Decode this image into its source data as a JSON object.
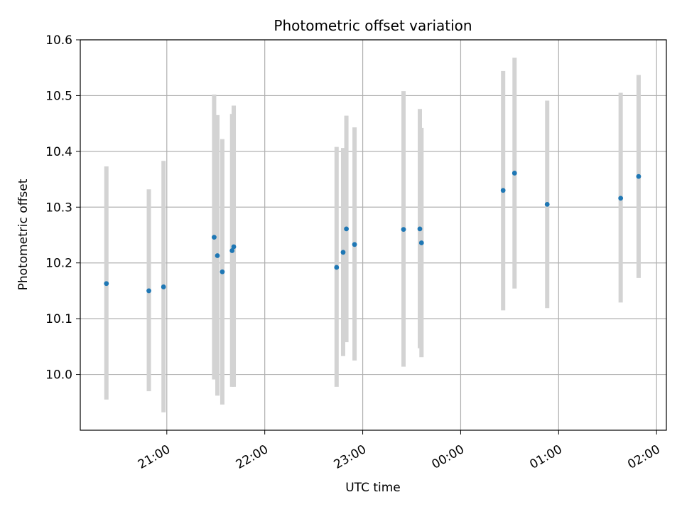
{
  "chart_data": {
    "type": "scatter",
    "title": "Photometric offset variation",
    "xlabel": "UTC time",
    "ylabel": "Photometric offset",
    "x_axis": "time",
    "xlim": [
      "20:07",
      "26:06"
    ],
    "ylim": [
      9.9,
      10.6
    ],
    "x_ticks": [
      {
        "value": "21:00",
        "label": "21:00"
      },
      {
        "value": "22:00",
        "label": "22:00"
      },
      {
        "value": "23:00",
        "label": "23:00"
      },
      {
        "value": "24:00",
        "label": "00:00"
      },
      {
        "value": "25:00",
        "label": "01:00"
      },
      {
        "value": "26:00",
        "label": "02:00"
      }
    ],
    "y_ticks": [
      "10.0",
      "10.1",
      "10.2",
      "10.3",
      "10.4",
      "10.5",
      "10.6"
    ],
    "grid": true,
    "colors": {
      "points": "#1f77b4",
      "error_bars": "#d3d3d3"
    },
    "series": [
      {
        "points": [
          {
            "x": "20:23",
            "y": 10.163,
            "low": 9.955,
            "high": 10.373
          },
          {
            "x": "20:49",
            "y": 10.15,
            "low": 9.97,
            "high": 10.332
          },
          {
            "x": "20:58",
            "y": 10.157,
            "low": 9.932,
            "high": 10.383
          },
          {
            "x": "21:29",
            "y": 10.246,
            "low": 9.991,
            "high": 10.502
          },
          {
            "x": "21:31",
            "y": 10.213,
            "low": 9.962,
            "high": 10.465
          },
          {
            "x": "21:34",
            "y": 10.184,
            "low": 9.946,
            "high": 10.422
          },
          {
            "x": "21:40",
            "y": 10.222,
            "low": 9.978,
            "high": 10.467
          },
          {
            "x": "21:41",
            "y": 10.229,
            "low": 9.978,
            "high": 10.482
          },
          {
            "x": "22:44",
            "y": 10.192,
            "low": 9.978,
            "high": 10.408
          },
          {
            "x": "22:48",
            "y": 10.219,
            "low": 10.033,
            "high": 10.406
          },
          {
            "x": "22:50",
            "y": 10.261,
            "low": 10.058,
            "high": 10.464
          },
          {
            "x": "22:55",
            "y": 10.233,
            "low": 10.025,
            "high": 10.443
          },
          {
            "x": "23:25",
            "y": 10.26,
            "low": 10.014,
            "high": 10.508
          },
          {
            "x": "23:35",
            "y": 10.261,
            "low": 10.047,
            "high": 10.476
          },
          {
            "x": "23:36",
            "y": 10.236,
            "low": 10.031,
            "high": 10.442
          },
          {
            "x": "24:26",
            "y": 10.33,
            "low": 10.115,
            "high": 10.544
          },
          {
            "x": "24:33",
            "y": 10.361,
            "low": 10.154,
            "high": 10.568
          },
          {
            "x": "24:53",
            "y": 10.305,
            "low": 10.119,
            "high": 10.491
          },
          {
            "x": "25:38",
            "y": 10.316,
            "low": 10.129,
            "high": 10.505
          },
          {
            "x": "25:49",
            "y": 10.355,
            "low": 10.173,
            "high": 10.537
          }
        ]
      }
    ]
  }
}
